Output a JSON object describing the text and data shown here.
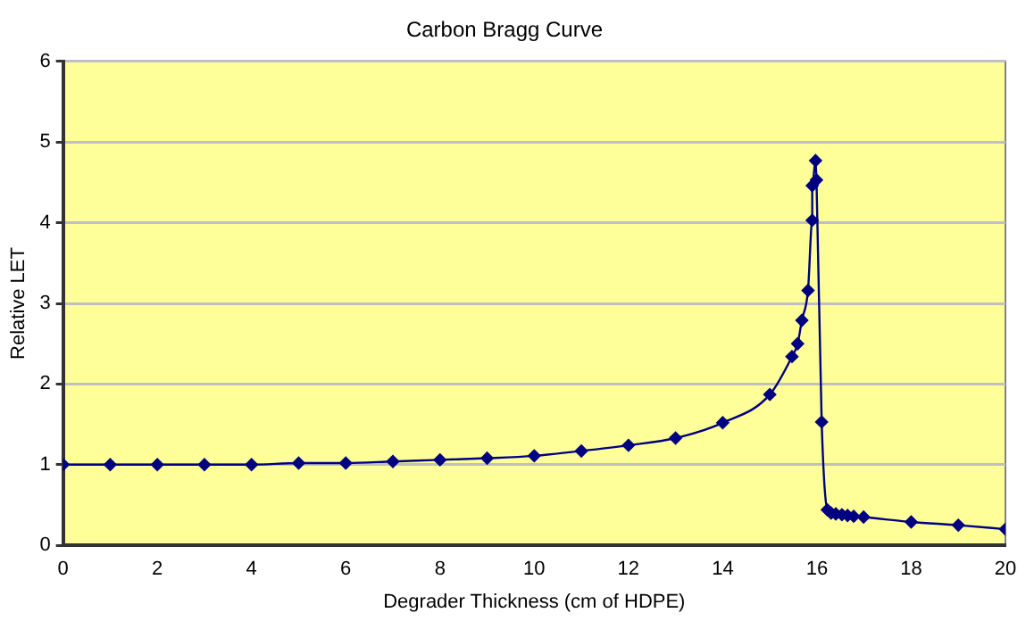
{
  "chart_data": {
    "type": "line",
    "title": "Carbon Bragg Curve",
    "xlabel": "Degrader Thickness (cm of HDPE)",
    "ylabel": "Relative LET",
    "series": [
      {
        "color": "#000080",
        "x": [
          0,
          1,
          2,
          3,
          4,
          5,
          6,
          7,
          8,
          9,
          10,
          11,
          12,
          13,
          14,
          15,
          15.47,
          15.59,
          15.68,
          15.81,
          15.9,
          15.9,
          15.97,
          15.99,
          16.1,
          16.22,
          16.3,
          16.4,
          16.53,
          16.65,
          16.78,
          16.99,
          18,
          19,
          20
        ],
        "values": [
          1.0,
          1.0,
          1.0,
          1.0,
          1.0,
          1.02,
          1.02,
          1.04,
          1.06,
          1.08,
          1.11,
          1.17,
          1.24,
          1.33,
          1.52,
          1.87,
          2.34,
          2.5,
          2.79,
          3.16,
          4.03,
          4.46,
          4.77,
          4.53,
          1.53,
          0.44,
          0.4,
          0.39,
          0.38,
          0.37,
          0.36,
          0.35,
          0.29,
          0.25,
          0.2
        ]
      }
    ],
    "xlim": [
      0,
      20
    ],
    "xticks": [
      0,
      2,
      4,
      6,
      8,
      10,
      12,
      14,
      16,
      18,
      20
    ],
    "ylim": [
      0,
      6
    ],
    "yticks": [
      0,
      1,
      2,
      3,
      4,
      5,
      6
    ],
    "grid": "y",
    "legend": false,
    "marker": "diamond",
    "line_style": "solid"
  }
}
